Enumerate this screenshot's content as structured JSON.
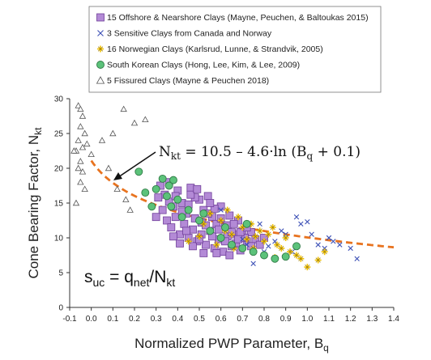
{
  "chart_data": {
    "type": "scatter",
    "xlabel": "Normalized PWP Parameter, B",
    "xlabel_sub": "q",
    "ylabel": "Cone Bearing Factor, N",
    "ylabel_sub": "kt",
    "xlim": [
      -0.1,
      1.4
    ],
    "ylim": [
      0,
      30
    ],
    "x_ticks": [
      "-0.1",
      "0.0",
      "0.1",
      "0.2",
      "0.3",
      "0.4",
      "0.5",
      "0.6",
      "0.7",
      "0.8",
      "0.9",
      "1.0",
      "1.1",
      "1.2",
      "1.3",
      "1.4"
    ],
    "y_ticks": [
      "0",
      "5",
      "10",
      "15",
      "20",
      "25",
      "30"
    ],
    "grid": false,
    "legend_position": "top",
    "series": [
      {
        "name": "15 Offshore & Nearshore Clays (Mayne, Peuchen, & Baltoukas 2015)",
        "marker": "square",
        "color": "#b38ad6",
        "edge": "#6f3e99",
        "points": [
          [
            0.32,
            17.5
          ],
          [
            0.34,
            16.2
          ],
          [
            0.36,
            18.0
          ],
          [
            0.38,
            14.5
          ],
          [
            0.4,
            16.8
          ],
          [
            0.42,
            15.0
          ],
          [
            0.44,
            13.5
          ],
          [
            0.46,
            17.2
          ],
          [
            0.48,
            12.8
          ],
          [
            0.5,
            15.5
          ],
          [
            0.52,
            14.0
          ],
          [
            0.54,
            16.0
          ],
          [
            0.56,
            13.0
          ],
          [
            0.58,
            12.0
          ],
          [
            0.6,
            14.5
          ],
          [
            0.62,
            11.5
          ],
          [
            0.64,
            13.2
          ],
          [
            0.66,
            10.5
          ],
          [
            0.68,
            12.5
          ],
          [
            0.7,
            11.0
          ],
          [
            0.72,
            9.5
          ],
          [
            0.74,
            10.8
          ],
          [
            0.76,
            9.8
          ],
          [
            0.35,
            12.5
          ],
          [
            0.37,
            11.5
          ],
          [
            0.39,
            13.0
          ],
          [
            0.41,
            10.5
          ],
          [
            0.43,
            12.0
          ],
          [
            0.45,
            10.0
          ],
          [
            0.47,
            11.2
          ],
          [
            0.49,
            9.5
          ],
          [
            0.51,
            10.5
          ],
          [
            0.53,
            9.0
          ],
          [
            0.55,
            11.0
          ],
          [
            0.57,
            8.5
          ],
          [
            0.59,
            9.8
          ],
          [
            0.61,
            8.0
          ],
          [
            0.63,
            10.2
          ],
          [
            0.65,
            8.8
          ],
          [
            0.67,
            9.2
          ],
          [
            0.69,
            8.2
          ],
          [
            0.71,
            10.0
          ],
          [
            0.33,
            14.0
          ],
          [
            0.36,
            15.2
          ],
          [
            0.39,
            16.0
          ],
          [
            0.42,
            13.8
          ],
          [
            0.45,
            14.8
          ],
          [
            0.48,
            15.8
          ],
          [
            0.51,
            12.2
          ],
          [
            0.54,
            13.5
          ],
          [
            0.57,
            14.2
          ],
          [
            0.6,
            12.8
          ],
          [
            0.63,
            11.8
          ],
          [
            0.66,
            12.0
          ],
          [
            0.69,
            10.8
          ],
          [
            0.72,
            11.5
          ],
          [
            0.38,
            10.2
          ],
          [
            0.41,
            9.2
          ],
          [
            0.44,
            11.0
          ],
          [
            0.47,
            8.8
          ],
          [
            0.5,
            9.8
          ],
          [
            0.53,
            11.8
          ],
          [
            0.56,
            10.2
          ],
          [
            0.59,
            11.2
          ],
          [
            0.62,
            9.5
          ],
          [
            0.65,
            10.8
          ],
          [
            0.68,
            9.8
          ],
          [
            0.3,
            13.0
          ],
          [
            0.31,
            15.8
          ],
          [
            0.58,
            7.8
          ],
          [
            0.64,
            7.5
          ],
          [
            0.52,
            7.8
          ],
          [
            0.46,
            16.2
          ],
          [
            0.55,
            15.0
          ],
          [
            0.49,
            17.0
          ],
          [
            0.74,
            8.8
          ],
          [
            0.78,
            9.0
          ],
          [
            0.8,
            10.0
          ]
        ]
      },
      {
        "name": "3 Sensitive Clays from Canada and Norway",
        "marker": "x",
        "color": "#3b4fb5",
        "points": [
          [
            0.6,
            14.0
          ],
          [
            0.72,
            9.0
          ],
          [
            0.8,
            8.0
          ],
          [
            0.85,
            9.5
          ],
          [
            0.9,
            10.5
          ],
          [
            0.95,
            13.0
          ],
          [
            0.97,
            12.0
          ],
          [
            1.0,
            12.3
          ],
          [
            1.05,
            9.0
          ],
          [
            1.08,
            8.5
          ],
          [
            1.1,
            10.0
          ],
          [
            1.12,
            9.5
          ],
          [
            1.15,
            9.0
          ],
          [
            1.2,
            8.5
          ],
          [
            1.23,
            7.0
          ],
          [
            0.75,
            6.3
          ],
          [
            0.88,
            11.0
          ],
          [
            0.78,
            12.0
          ],
          [
            0.7,
            9.8
          ],
          [
            1.02,
            10.5
          ],
          [
            0.93,
            8.0
          ],
          [
            0.82,
            8.8
          ]
        ]
      },
      {
        "name": "16 Norwegian Clays (Karlsrud, Lunne, & Strandvik, 2005)",
        "marker": "star",
        "color": "#f2c200",
        "edge": "#a07e00",
        "points": [
          [
            0.55,
            13.5
          ],
          [
            0.6,
            12.5
          ],
          [
            0.62,
            11.0
          ],
          [
            0.65,
            10.5
          ],
          [
            0.68,
            13.0
          ],
          [
            0.7,
            11.5
          ],
          [
            0.72,
            9.8
          ],
          [
            0.74,
            12.0
          ],
          [
            0.76,
            10.2
          ],
          [
            0.78,
            11.0
          ],
          [
            0.8,
            9.5
          ],
          [
            0.82,
            10.5
          ],
          [
            0.84,
            11.5
          ],
          [
            0.86,
            9.0
          ],
          [
            0.88,
            8.5
          ],
          [
            0.9,
            10.0
          ],
          [
            0.92,
            8.0
          ],
          [
            0.95,
            7.5
          ],
          [
            0.97,
            7.0
          ],
          [
            1.0,
            5.8
          ],
          [
            1.05,
            6.8
          ],
          [
            1.08,
            8.0
          ],
          [
            0.58,
            9.0
          ],
          [
            0.66,
            8.5
          ],
          [
            0.5,
            10.2
          ],
          [
            0.52,
            12.0
          ],
          [
            0.75,
            8.5
          ],
          [
            0.85,
            7.2
          ],
          [
            0.45,
            9.5
          ],
          [
            0.63,
            14.0
          ]
        ]
      },
      {
        "name": "South Korean Clays (Hong, Lee, Kim, & Lee, 2009)",
        "marker": "circle",
        "color": "#5cc27a",
        "edge": "#2f7a45",
        "points": [
          [
            0.22,
            19.5
          ],
          [
            0.25,
            16.5
          ],
          [
            0.3,
            17.0
          ],
          [
            0.33,
            18.5
          ],
          [
            0.35,
            16.0
          ],
          [
            0.37,
            14.5
          ],
          [
            0.4,
            15.5
          ],
          [
            0.42,
            13.0
          ],
          [
            0.45,
            14.0
          ],
          [
            0.5,
            12.5
          ],
          [
            0.55,
            11.0
          ],
          [
            0.6,
            10.0
          ],
          [
            0.65,
            9.0
          ],
          [
            0.7,
            8.5
          ],
          [
            0.75,
            8.0
          ],
          [
            0.8,
            7.5
          ],
          [
            0.85,
            7.0
          ],
          [
            0.9,
            7.3
          ],
          [
            0.95,
            8.8
          ],
          [
            0.72,
            12.0
          ],
          [
            0.62,
            11.5
          ],
          [
            0.52,
            13.5
          ],
          [
            0.28,
            14.5
          ],
          [
            0.38,
            18.3
          ],
          [
            0.36,
            17.5
          ]
        ]
      },
      {
        "name": "5 Fissured Clays (Mayne & Peuchen 2018)",
        "marker": "triangle",
        "color": "#ffffff",
        "edge": "#555555",
        "points": [
          [
            -0.06,
            29.0
          ],
          [
            -0.05,
            28.5
          ],
          [
            -0.04,
            27.5
          ],
          [
            -0.05,
            26.0
          ],
          [
            -0.03,
            25.0
          ],
          [
            -0.06,
            24.0
          ],
          [
            -0.04,
            23.0
          ],
          [
            -0.07,
            22.5
          ],
          [
            -0.05,
            21.0
          ],
          [
            -0.06,
            20.0
          ],
          [
            -0.04,
            19.5
          ],
          [
            -0.05,
            18.0
          ],
          [
            -0.03,
            17.0
          ],
          [
            -0.07,
            15.0
          ],
          [
            0.0,
            22.0
          ],
          [
            0.05,
            24.0
          ],
          [
            0.08,
            20.0
          ],
          [
            0.1,
            25.0
          ],
          [
            0.12,
            17.0
          ],
          [
            0.15,
            28.5
          ],
          [
            0.18,
            14.0
          ],
          [
            0.2,
            26.5
          ],
          [
            0.25,
            27.0
          ],
          [
            0.16,
            15.5
          ],
          [
            -0.02,
            23.5
          ],
          [
            -0.08,
            22.5
          ]
        ]
      }
    ],
    "fit_curve": {
      "equation": "N = 10.5 – 4.6·ln (B + 0.1)",
      "a": 10.5,
      "b": 4.6,
      "c": 0.1,
      "x_start": 0.0,
      "x_end": 1.4,
      "color": "#e8731f"
    },
    "annotations": {
      "equation_text": {
        "n_main": "N",
        "n_sub": "kt",
        "mid": " = 10.5 – 4.6·ln (B",
        "b_sub": "q",
        "tail": " + 0.1)"
      },
      "suc_text": {
        "s": "s",
        "s_sub": "uc",
        "eq": " = q",
        "q_sub": "net",
        "slash": "/N",
        "n_sub": "kt"
      }
    }
  }
}
